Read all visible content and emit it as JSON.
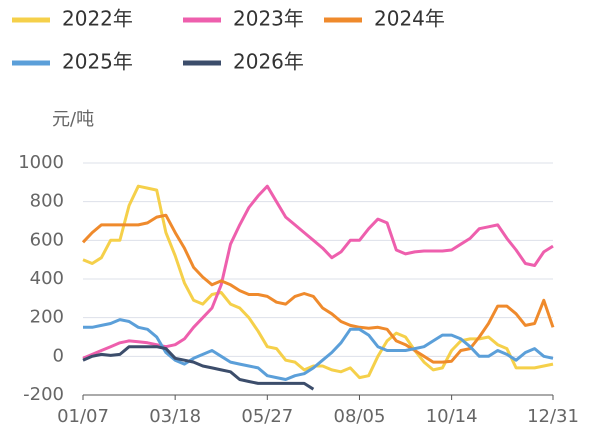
{
  "chart_data": {
    "type": "line",
    "y_label": "元/吨",
    "categories": [
      "01/07",
      null,
      null,
      null,
      null,
      null,
      null,
      null,
      null,
      null,
      "03/18",
      null,
      null,
      null,
      null,
      null,
      null,
      null,
      null,
      null,
      "05/27",
      null,
      null,
      null,
      null,
      null,
      null,
      null,
      null,
      null,
      "08/05",
      null,
      null,
      null,
      null,
      null,
      null,
      null,
      null,
      null,
      "10/14",
      null,
      null,
      null,
      null,
      null,
      null,
      null,
      null,
      null,
      null,
      "12/31"
    ],
    "series": [
      {
        "name": "2022年",
        "color": "#f5d04a",
        "values": [
          500,
          480,
          510,
          600,
          600,
          780,
          880,
          870,
          860,
          640,
          520,
          380,
          290,
          270,
          320,
          330,
          270,
          250,
          200,
          130,
          50,
          40,
          -20,
          -30,
          -70,
          -50,
          -50,
          -70,
          -80,
          -60,
          -110,
          -100,
          0,
          80,
          120,
          100,
          30,
          -30,
          -70,
          -60,
          30,
          80,
          90,
          90,
          100,
          60,
          40,
          -60,
          -60,
          -60,
          -50,
          -40
        ]
      },
      {
        "name": "2023年",
        "color": "#ee5fad",
        "values": [
          -10,
          10,
          30,
          50,
          70,
          80,
          75,
          70,
          60,
          50,
          60,
          90,
          150,
          200,
          250,
          370,
          580,
          680,
          770,
          830,
          880,
          800,
          720,
          680,
          640,
          600,
          560,
          510,
          540,
          600,
          600,
          660,
          710,
          690,
          550,
          530,
          540,
          545,
          545,
          545,
          550,
          580,
          610,
          660,
          670,
          680,
          610,
          550,
          480,
          470,
          540,
          570
        ]
      },
      {
        "name": "2024年",
        "color": "#ef8a2c",
        "values": [
          590,
          640,
          680,
          680,
          680,
          680,
          680,
          690,
          720,
          730,
          640,
          560,
          460,
          410,
          370,
          390,
          370,
          340,
          320,
          320,
          310,
          280,
          270,
          310,
          325,
          310,
          250,
          220,
          180,
          160,
          150,
          145,
          150,
          140,
          80,
          60,
          30,
          0,
          -30,
          -30,
          -25,
          30,
          40,
          100,
          170,
          260,
          260,
          220,
          160,
          170,
          290,
          150
        ]
      },
      {
        "name": "2025年",
        "color": "#5b9fd9",
        "values": [
          150,
          150,
          160,
          170,
          190,
          180,
          150,
          140,
          100,
          20,
          -20,
          -40,
          -10,
          10,
          30,
          0,
          -30,
          -40,
          -50,
          -60,
          -100,
          -110,
          -120,
          -100,
          -90,
          -60,
          -20,
          20,
          70,
          140,
          140,
          110,
          50,
          30,
          30,
          30,
          40,
          50,
          80,
          110,
          110,
          90,
          50,
          0,
          0,
          30,
          10,
          -20,
          20,
          40,
          0,
          -10
        ]
      },
      {
        "name": "2026年",
        "color": "#3c4d6b",
        "values": [
          -20,
          0,
          10,
          5,
          10,
          50,
          50,
          50,
          50,
          40,
          -10,
          -20,
          -30,
          -50,
          -60,
          -70,
          -80,
          -120,
          -130,
          -140,
          -140,
          -140,
          -140,
          -140,
          -140,
          -170,
          null,
          null,
          null,
          null,
          null,
          null,
          null,
          null,
          null,
          null,
          null,
          null,
          null,
          null,
          null,
          null,
          null,
          null,
          null,
          null,
          null,
          null,
          null,
          null,
          null,
          null
        ]
      }
    ],
    "ylim": [
      -200,
      1000
    ],
    "yticks": [
      -200,
      0,
      200,
      400,
      600,
      800,
      1000
    ],
    "grid": true
  }
}
